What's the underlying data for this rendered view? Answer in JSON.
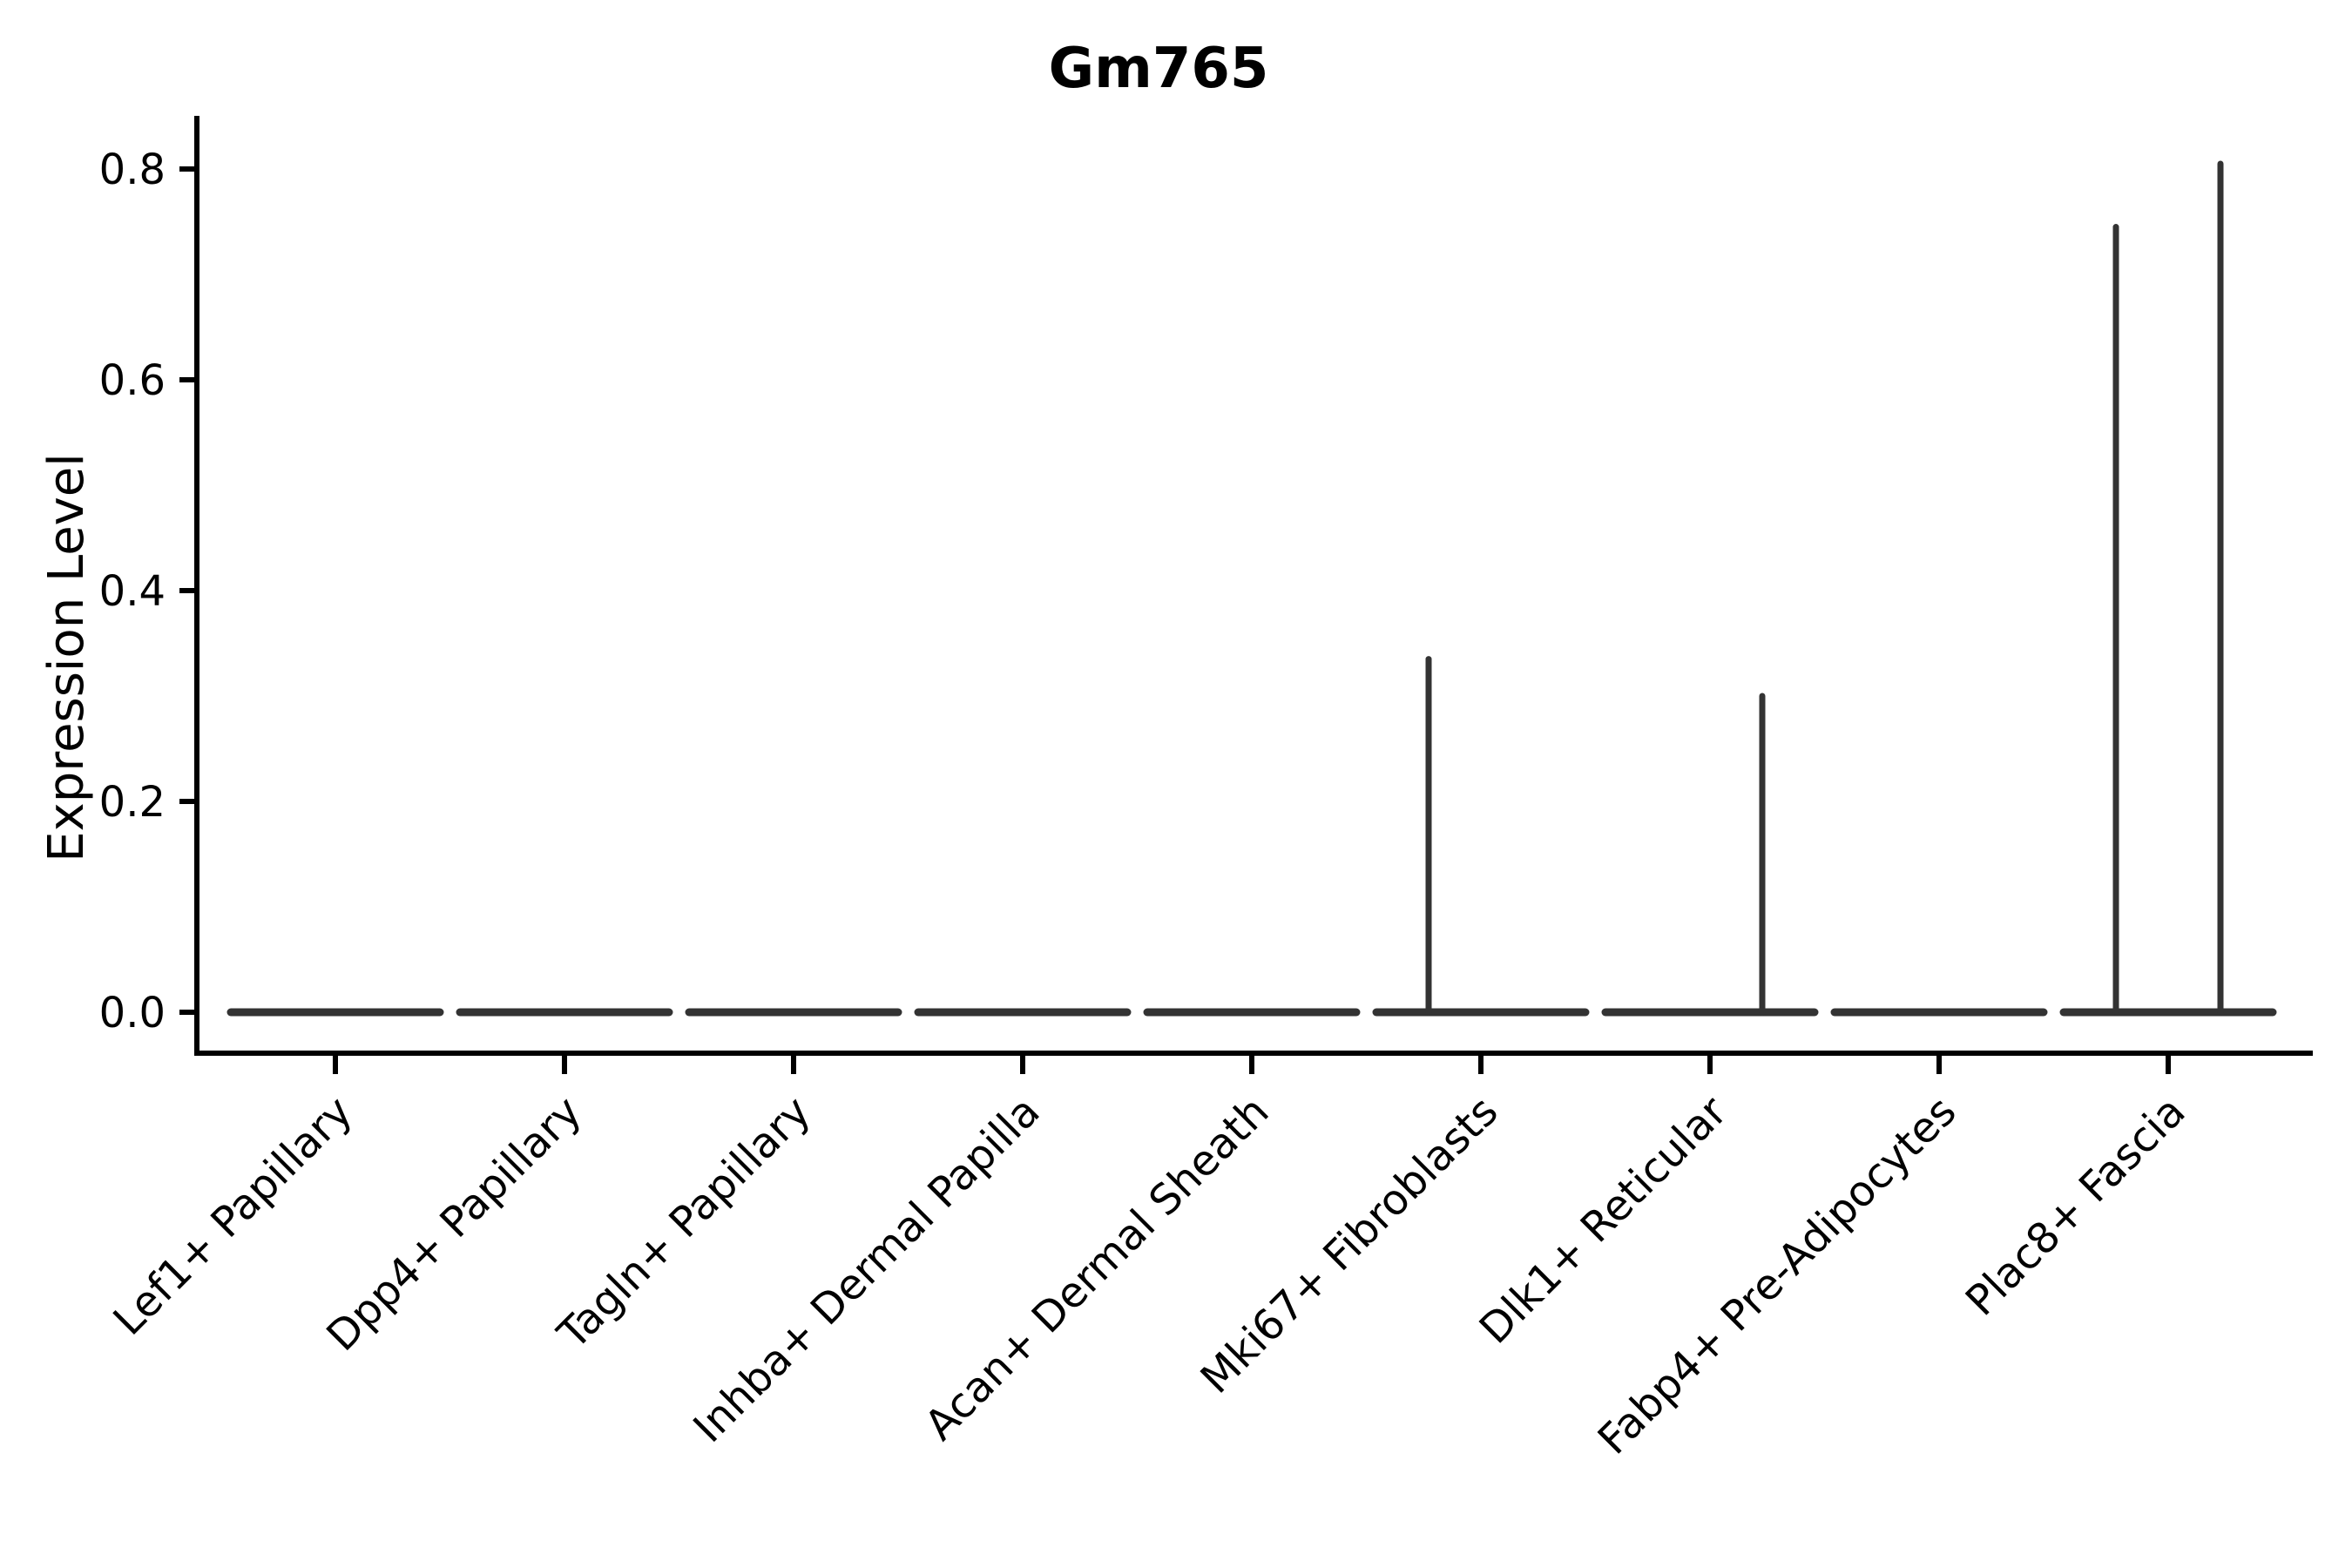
{
  "page": {
    "background": "#ffffff"
  },
  "chart_data": {
    "type": "violin",
    "title": "Gm765",
    "ylabel": "Expression Level",
    "xlabel": "",
    "ylim": [
      0,
      0.85
    ],
    "yticks": [
      {
        "value": 0.0,
        "label": "0.0"
      },
      {
        "value": 0.2,
        "label": "0.2"
      },
      {
        "value": 0.4,
        "label": "0.4"
      },
      {
        "value": 0.6,
        "label": "0.6"
      },
      {
        "value": 0.8,
        "label": "0.8"
      }
    ],
    "categories": [
      "Lef1+ Papillary",
      "Dpp4+ Papillary",
      "Tagln+ Papillary",
      "Inhba+ Dermal Papilla",
      "Acan+ Dermal Sheath",
      "Mki67+ Fibroblasts",
      "Dlk1+ Reticular",
      "Fabp4+ Pre-Adipocytes",
      "Plac8+ Fascia"
    ],
    "violins": [
      {
        "category": "Lef1+ Papillary",
        "baseline_value": 0.0,
        "spikes": []
      },
      {
        "category": "Dpp4+ Papillary",
        "baseline_value": 0.0,
        "spikes": []
      },
      {
        "category": "Tagln+ Papillary",
        "baseline_value": 0.0,
        "spikes": []
      },
      {
        "category": "Inhba+ Dermal Papilla",
        "baseline_value": 0.0,
        "spikes": []
      },
      {
        "category": "Acan+ Dermal Sheath",
        "baseline_value": 0.0,
        "spikes": []
      },
      {
        "category": "Mki67+ Fibroblasts",
        "baseline_value": 0.0,
        "spikes": [
          {
            "side": "left",
            "max": 0.335
          }
        ]
      },
      {
        "category": "Dlk1+ Reticular",
        "baseline_value": 0.0,
        "spikes": [
          {
            "side": "right",
            "max": 0.3
          }
        ]
      },
      {
        "category": "Fabp4+ Pre-Adipocytes",
        "baseline_value": 0.0,
        "spikes": []
      },
      {
        "category": "Plac8+ Fascia",
        "baseline_value": 0.0,
        "spikes": [
          {
            "side": "left",
            "max": 0.745
          },
          {
            "side": "right",
            "max": 0.805
          }
        ]
      }
    ],
    "grid": false,
    "legend": null,
    "colors": {
      "violin": "#333333",
      "axis": "#000000",
      "text": "#000000"
    }
  }
}
